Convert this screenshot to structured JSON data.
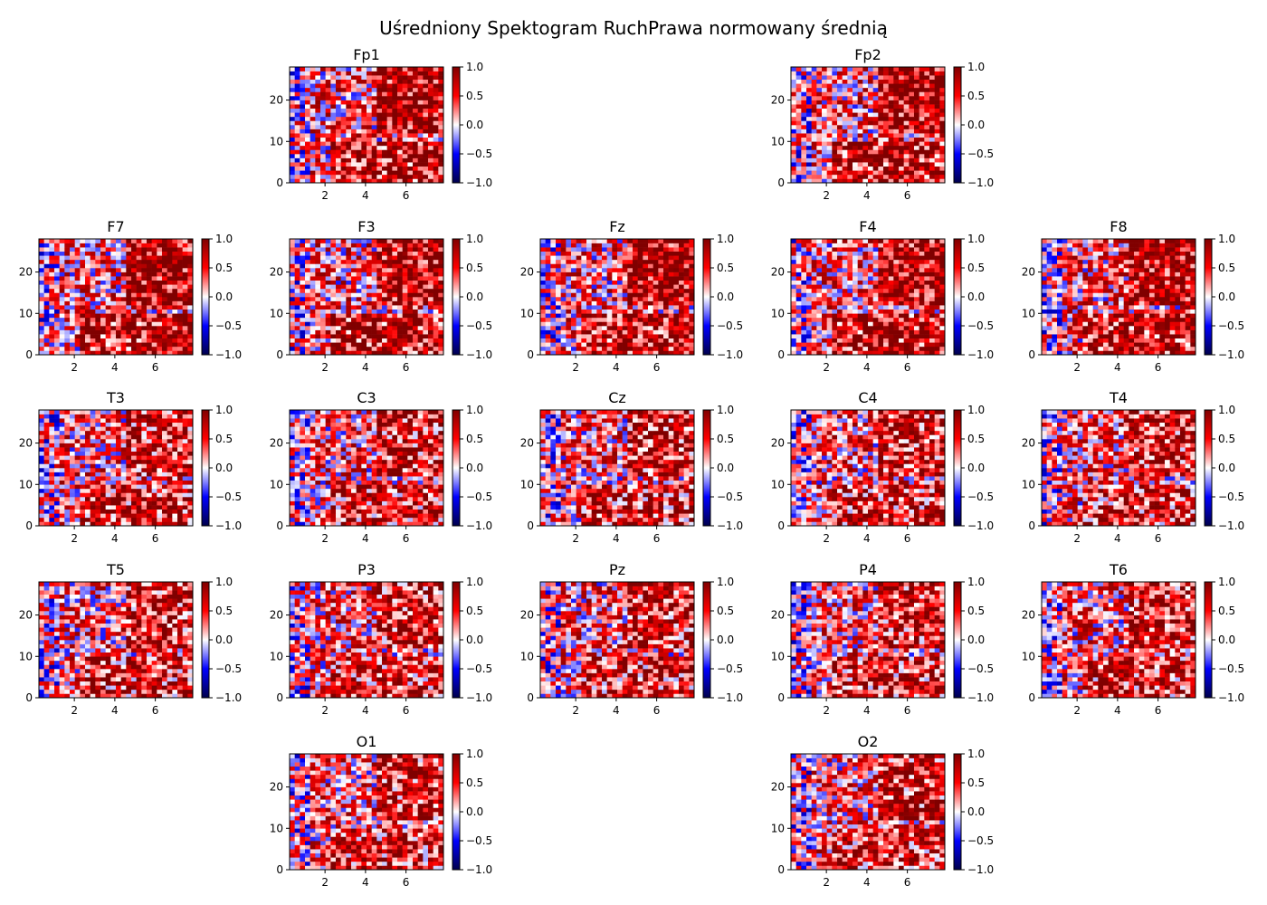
{
  "chart_data": {
    "type": "heatmap",
    "title": "Uśredniony Spektogram RuchPrawa normowany średnią",
    "colormap": "seismic",
    "x_range": [
      0.25,
      7.85
    ],
    "y_range": [
      0,
      28
    ],
    "x_ticks": [
      "2",
      "4",
      "6"
    ],
    "y_ticks": [
      "0",
      "10",
      "20"
    ],
    "color_range": [
      -1.0,
      1.0
    ],
    "colorbar_ticks": [
      "1.0",
      "0.5",
      "0.0",
      "−0.5",
      "−1.0"
    ],
    "grid": "5 rows x 5 columns",
    "channels": [
      {
        "name": "Fp1",
        "row": 0,
        "col": 1
      },
      {
        "name": "Fp2",
        "row": 0,
        "col": 3
      },
      {
        "name": "F7",
        "row": 1,
        "col": 0
      },
      {
        "name": "F3",
        "row": 1,
        "col": 1
      },
      {
        "name": "Fz",
        "row": 1,
        "col": 2
      },
      {
        "name": "F4",
        "row": 1,
        "col": 3
      },
      {
        "name": "F8",
        "row": 1,
        "col": 4
      },
      {
        "name": "T3",
        "row": 2,
        "col": 0
      },
      {
        "name": "C3",
        "row": 2,
        "col": 1
      },
      {
        "name": "Cz",
        "row": 2,
        "col": 2
      },
      {
        "name": "C4",
        "row": 2,
        "col": 3
      },
      {
        "name": "T4",
        "row": 2,
        "col": 4
      },
      {
        "name": "T5",
        "row": 3,
        "col": 0
      },
      {
        "name": "P3",
        "row": 3,
        "col": 1
      },
      {
        "name": "Pz",
        "row": 3,
        "col": 2
      },
      {
        "name": "P4",
        "row": 3,
        "col": 3
      },
      {
        "name": "T6",
        "row": 3,
        "col": 4
      },
      {
        "name": "O1",
        "row": 4,
        "col": 1
      },
      {
        "name": "O2",
        "row": 4,
        "col": 3
      }
    ]
  }
}
